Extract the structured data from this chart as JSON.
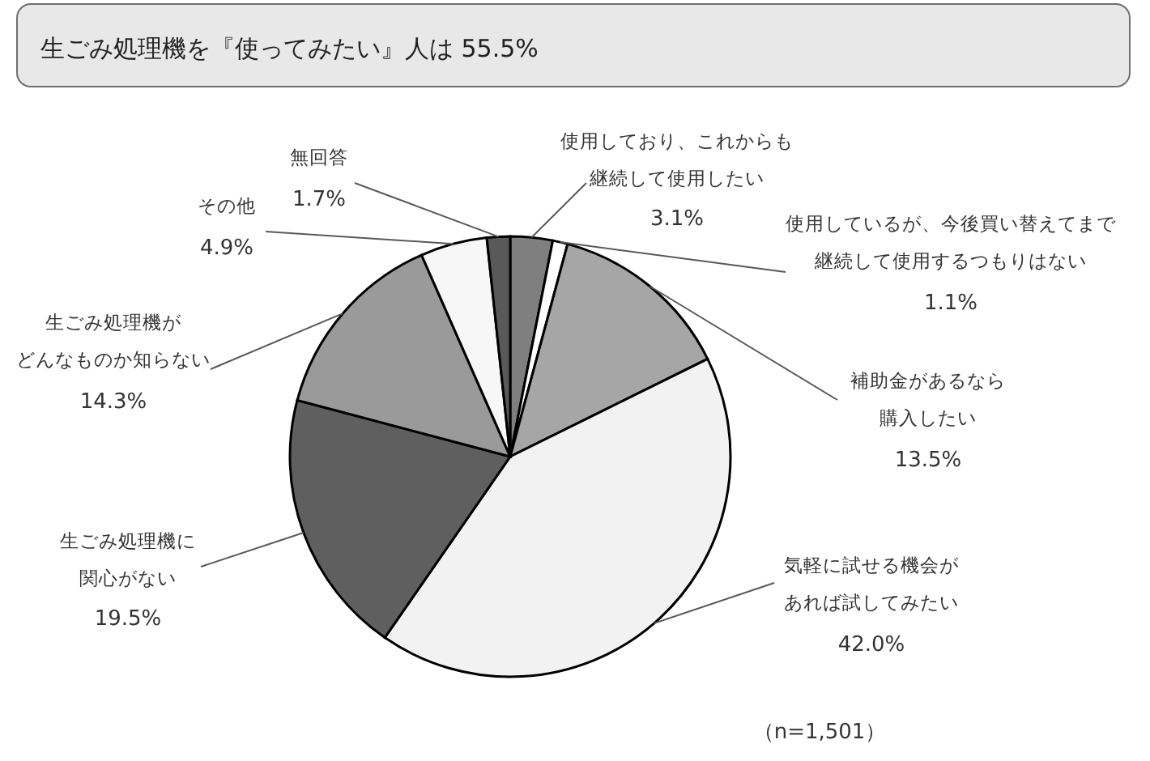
{
  "chart_data": {
    "type": "pie",
    "title": "生ごみ処理機を『使ってみたい』人は 55.5%",
    "categories": [
      "使用しており、これからも継続して使用したい",
      "使用しているが、今後買い替えてまで継続して使用するつもりはない",
      "補助金があるなら購入したい",
      "気軽に試せる機会があれば試してみたい",
      "生ごみ処理機に関心がない",
      "生ごみ処理機がどんなものか知らない",
      "その他",
      "無回答"
    ],
    "values": [
      3.1,
      1.1,
      13.5,
      42.0,
      19.5,
      14.3,
      4.9,
      1.7
    ],
    "value_labels": [
      "3.1%",
      "1.1%",
      "13.5%",
      "42.0%",
      "19.5%",
      "14.3%",
      "4.9%",
      "1.7%"
    ],
    "colors": [
      "#7f7f7f",
      "#ffffff",
      "#a6a6a6",
      "#f2f2f2",
      "#5f5f5f",
      "#9a9a9a",
      "#f7f7f7",
      "#595959"
    ],
    "annotations": [
      "（n=1,501）"
    ]
  }
}
